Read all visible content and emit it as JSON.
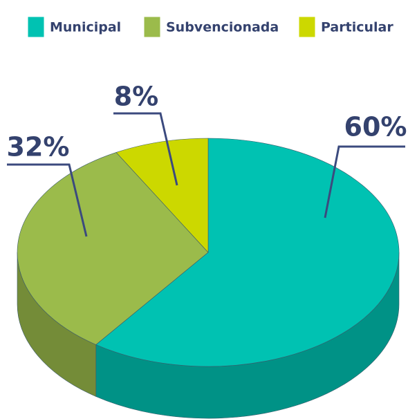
{
  "chart_data": {
    "type": "pie",
    "categories": [
      "Municipal",
      "Subvencionada",
      "Particular"
    ],
    "values": [
      60,
      32,
      8
    ],
    "value_labels": [
      "60%",
      "32%",
      "8%"
    ],
    "colors": [
      "#00c2b2",
      "#9bbb4b",
      "#ccd800"
    ]
  }
}
